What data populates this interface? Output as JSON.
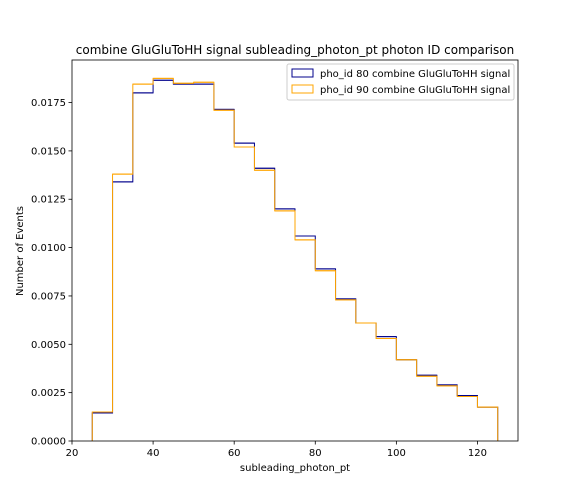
{
  "chart_data": {
    "type": "step",
    "title": "combine GluGluToHH signal subleading_photon_pt photon ID comparison",
    "xlabel": "subleading_photon_pt",
    "ylabel": "Number of Events",
    "xlim": [
      20,
      130
    ],
    "ylim": [
      0,
      0.0197
    ],
    "xticks": [
      20,
      40,
      60,
      80,
      100,
      120
    ],
    "xtick_labels": [
      "20",
      "40",
      "60",
      "80",
      "100",
      "120"
    ],
    "yticks": [
      0,
      0.0025,
      0.005,
      0.0075,
      0.01,
      0.0125,
      0.015,
      0.0175
    ],
    "ytick_labels": [
      "0.0000",
      "0.0025",
      "0.0050",
      "0.0075",
      "0.0100",
      "0.0125",
      "0.0150",
      "0.0175"
    ],
    "grid": false,
    "legend_position": "top-right",
    "bin_edges": [
      25,
      30,
      35,
      40,
      45,
      50,
      55,
      60,
      65,
      70,
      75,
      80,
      85,
      90,
      95,
      100,
      105,
      110,
      115,
      120,
      125
    ],
    "series": [
      {
        "name": "pho_id 80 combine GluGluToHH signal",
        "color": "#00008b",
        "values": [
          0.00145,
          0.0134,
          0.018,
          0.01865,
          0.01845,
          0.01845,
          0.01715,
          0.0154,
          0.0141,
          0.012,
          0.0106,
          0.0089,
          0.00735,
          0.0061,
          0.0054,
          0.0042,
          0.0034,
          0.0029,
          0.00235,
          0.00175
        ]
      },
      {
        "name": "pho_id 90 combine GluGluToHH signal",
        "color": "#ffa500",
        "values": [
          0.0015,
          0.0138,
          0.01845,
          0.01875,
          0.0185,
          0.01855,
          0.0171,
          0.0152,
          0.014,
          0.0119,
          0.0104,
          0.0088,
          0.0073,
          0.0061,
          0.0053,
          0.0042,
          0.00335,
          0.00285,
          0.0023,
          0.00175
        ]
      }
    ]
  }
}
